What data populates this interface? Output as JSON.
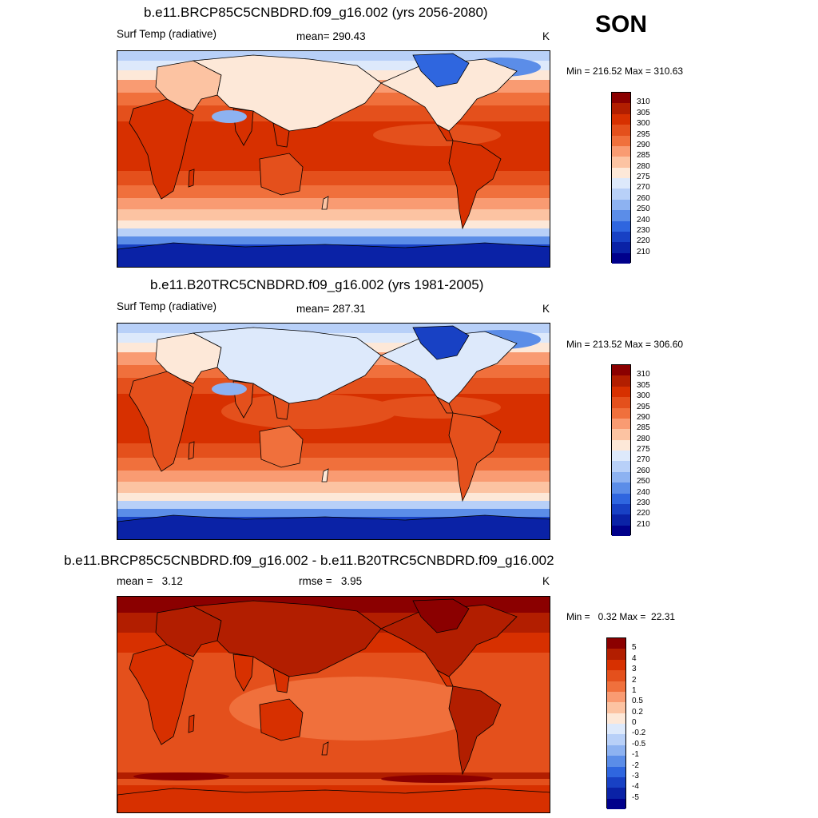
{
  "season": "SON",
  "panels": [
    {
      "title": "b.e11.BRCP85C5CNBDRD.f09_g16.002 (yrs 2056-2080)",
      "left_label": "Surf Temp (radiative)",
      "center_label": "mean= 290.43",
      "right_label": "K",
      "minmax": "Min = 216.52 Max = 310.63",
      "colorbar_labels": [
        "310",
        "305",
        "300",
        "295",
        "290",
        "285",
        "280",
        "275",
        "270",
        "260",
        "250",
        "240",
        "230",
        "220",
        "210"
      ]
    },
    {
      "title": "b.e11.B20TRC5CNBDRD.f09_g16.002 (yrs 1981-2005)",
      "left_label": "Surf Temp (radiative)",
      "center_label": "mean= 287.31",
      "right_label": "K",
      "minmax": "Min = 213.52 Max = 306.60",
      "colorbar_labels": [
        "310",
        "305",
        "300",
        "295",
        "290",
        "285",
        "280",
        "275",
        "270",
        "260",
        "250",
        "240",
        "230",
        "220",
        "210"
      ]
    },
    {
      "title": "b.e11.BRCP85C5CNBDRD.f09_g16.002 - b.e11.B20TRC5CNBDRD.f09_g16.002",
      "left_label": "mean =   3.12",
      "center_label": "rmse =   3.95",
      "right_label": "K",
      "minmax": "Min =   0.32 Max =  22.31",
      "colorbar_labels": [
        "5",
        "4",
        "3",
        "2",
        "1",
        "0.5",
        "0.2",
        "0",
        "-0.2",
        "-0.5",
        "-1",
        "-2",
        "-3",
        "-4",
        "-5"
      ]
    }
  ],
  "colors": {
    "palette": [
      "#8b0000",
      "#b21e00",
      "#d73000",
      "#e4501c",
      "#f0703c",
      "#f99b72",
      "#fcc3a2",
      "#fde8d8",
      "#dde9fb",
      "#b8d0f8",
      "#8db2f1",
      "#5b8de8",
      "#2f66df",
      "#1841c4",
      "#0a22a6",
      "#00008b"
    ]
  }
}
